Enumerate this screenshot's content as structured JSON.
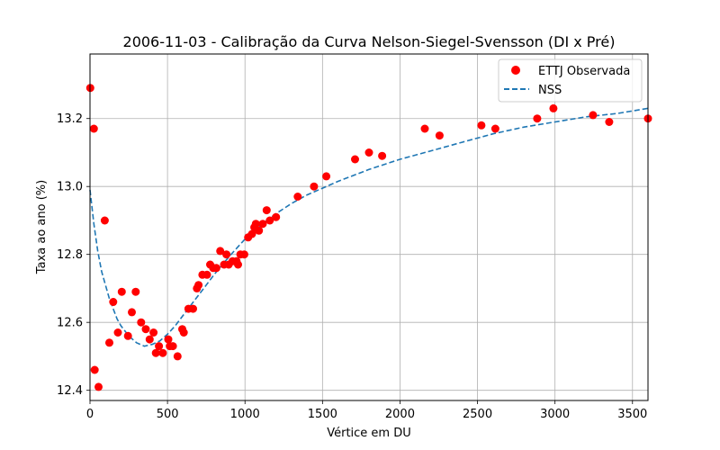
{
  "chart_data": {
    "type": "scatter",
    "title": "2006-11-03 - Calibração da Curva Nelson-Siegel-Svensson (DI x Pré)",
    "xlabel": "Vértice em DU",
    "ylabel": "Taxa ao ano (%)",
    "xlim": [
      0,
      3600
    ],
    "ylim": [
      12.37,
      13.39
    ],
    "x_ticks": [
      0,
      500,
      1000,
      1500,
      2000,
      2500,
      3000,
      3500
    ],
    "y_ticks": [
      12.4,
      12.6,
      12.8,
      13.0,
      13.2
    ],
    "x_tick_labels": [
      "0",
      "500",
      "1000",
      "1500",
      "2000",
      "2500",
      "3000",
      "3500"
    ],
    "y_tick_labels": [
      "12.4",
      "12.6",
      "12.8",
      "13.0",
      "13.2"
    ],
    "grid": true,
    "legend_position": "top-right",
    "colors": {
      "observed": "#ff0000",
      "fit": "#1f77b4"
    },
    "series": [
      {
        "name": "ETTJ Observada",
        "kind": "scatter",
        "x": [
          2,
          25,
          30,
          55,
          95,
          125,
          150,
          180,
          205,
          245,
          270,
          295,
          330,
          360,
          385,
          410,
          425,
          445,
          470,
          505,
          515,
          535,
          565,
          595,
          605,
          635,
          665,
          690,
          700,
          725,
          755,
          775,
          795,
          815,
          840,
          865,
          880,
          895,
          920,
          945,
          955,
          970,
          995,
          1020,
          1045,
          1060,
          1070,
          1090,
          1115,
          1140,
          1160,
          1200,
          1340,
          1445,
          1525,
          1710,
          1800,
          1885,
          2160,
          2255,
          2525,
          2615,
          2885,
          2990,
          3245,
          3350,
          3600
        ],
        "y": [
          13.29,
          13.17,
          12.46,
          12.41,
          12.9,
          12.54,
          12.66,
          12.57,
          12.69,
          12.56,
          12.63,
          12.69,
          12.6,
          12.58,
          12.55,
          12.57,
          12.51,
          12.53,
          12.51,
          12.55,
          12.53,
          12.53,
          12.5,
          12.58,
          12.57,
          12.64,
          12.64,
          12.7,
          12.71,
          12.74,
          12.74,
          12.77,
          12.76,
          12.76,
          12.81,
          12.77,
          12.8,
          12.77,
          12.78,
          12.78,
          12.77,
          12.8,
          12.8,
          12.85,
          12.86,
          12.88,
          12.89,
          12.87,
          12.89,
          12.93,
          12.9,
          12.91,
          12.97,
          13.0,
          13.03,
          13.08,
          13.1,
          13.09,
          13.17,
          13.15,
          13.18,
          13.17,
          13.2,
          13.23,
          13.21,
          13.19,
          13.2
        ]
      },
      {
        "name": "NSS",
        "kind": "line",
        "style": "dashed",
        "x": [
          0,
          25,
          50,
          75,
          100,
          125,
          150,
          175,
          200,
          250,
          300,
          350,
          400,
          450,
          500,
          550,
          600,
          650,
          700,
          750,
          800,
          900,
          1000,
          1100,
          1200,
          1300,
          1400,
          1500,
          1600,
          1800,
          2000,
          2200,
          2400,
          2600,
          2800,
          3000,
          3200,
          3400,
          3600
        ],
        "y": [
          12.99,
          12.89,
          12.81,
          12.75,
          12.71,
          12.67,
          12.64,
          12.61,
          12.59,
          12.56,
          12.54,
          12.53,
          12.535,
          12.545,
          12.565,
          12.59,
          12.62,
          12.65,
          12.68,
          12.71,
          12.74,
          12.795,
          12.845,
          12.885,
          12.92,
          12.95,
          12.975,
          12.995,
          13.015,
          13.05,
          13.08,
          13.105,
          13.13,
          13.155,
          13.175,
          13.19,
          13.205,
          13.215,
          13.23
        ]
      }
    ]
  }
}
